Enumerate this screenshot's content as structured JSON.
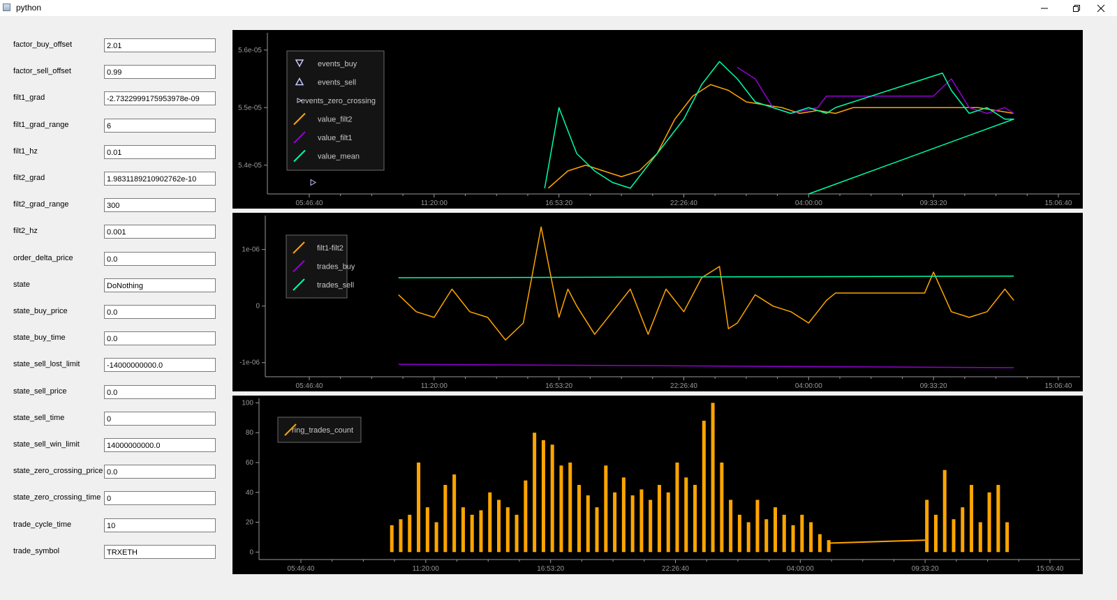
{
  "window": {
    "title": "python"
  },
  "params": [
    {
      "name": "factor_buy_offset",
      "value": "2.01"
    },
    {
      "name": "factor_sell_offset",
      "value": "0.99"
    },
    {
      "name": "filt1_grad",
      "value": "-2.7322999175953978e-09"
    },
    {
      "name": "filt1_grad_range",
      "value": "6"
    },
    {
      "name": "filt1_hz",
      "value": "0.01"
    },
    {
      "name": "filt2_grad",
      "value": "1.9831189210902762e-10"
    },
    {
      "name": "filt2_grad_range",
      "value": "300"
    },
    {
      "name": "filt2_hz",
      "value": "0.001"
    },
    {
      "name": "order_delta_price",
      "value": "0.0"
    },
    {
      "name": "state",
      "value": "DoNothing"
    },
    {
      "name": "state_buy_price",
      "value": "0.0"
    },
    {
      "name": "state_buy_time",
      "value": "0.0"
    },
    {
      "name": "state_sell_lost_limit",
      "value": "-14000000000.0"
    },
    {
      "name": "state_sell_price",
      "value": "0.0"
    },
    {
      "name": "state_sell_time",
      "value": "0"
    },
    {
      "name": "state_sell_win_limit",
      "value": "14000000000.0"
    },
    {
      "name": "state_zero_crossing_price",
      "value": "0.0"
    },
    {
      "name": "state_zero_crossing_time",
      "value": "0"
    },
    {
      "name": "trade_cycle_time",
      "value": "10"
    },
    {
      "name": "trade_symbol",
      "value": "TRXETH"
    }
  ],
  "colors": {
    "orange": "#ffa500",
    "purple": "#9400d3",
    "green": "#00ffaa",
    "lavender": "#c8c8ff",
    "axis": "#9a9a9a"
  },
  "chart_data": [
    {
      "type": "line",
      "x_ticks": [
        "05:46:40",
        "11:20:00",
        "16:53:20",
        "22:26:40",
        "04:00:00",
        "09:33:20",
        "15:06:40"
      ],
      "y_ticks": [
        "5.4e-05",
        "5.5e-05",
        "5.6e-05"
      ],
      "ylim": [
        5.35e-05,
        5.63e-05
      ],
      "legend": [
        "events_buy",
        "events_sell",
        "events_zero_crossing",
        "value_filt2",
        "value_filt1",
        "value_mean"
      ],
      "series": [
        {
          "name": "value_filt2",
          "color": "orange",
          "x": [
            13.4,
            14.5,
            15.5,
            16.5,
            17.5,
            18.5,
            19.5,
            20.5,
            21.5,
            22.5,
            23.5,
            24.5,
            25.5,
            26.5,
            27.5,
            28.5,
            29.5,
            30.5,
            31.5,
            32.5,
            33.5,
            34.5,
            35.5,
            36.5,
            37.5,
            38.5,
            39.5
          ],
          "y": [
            5.36e-05,
            5.39e-05,
            5.4e-05,
            5.39e-05,
            5.38e-05,
            5.39e-05,
            5.42e-05,
            5.48e-05,
            5.52e-05,
            5.54e-05,
            5.53e-05,
            5.51e-05,
            5.505e-05,
            5.5e-05,
            5.49e-05,
            5.495e-05,
            5.49e-05,
            5.5e-05,
            5.5e-05,
            5.5e-05,
            5.5e-05,
            5.5e-05,
            5.5e-05,
            5.5e-05,
            5.5e-05,
            5.495e-05,
            5.49e-05
          ]
        },
        {
          "name": "value_filt1",
          "color": "purple",
          "x": [
            24.0,
            25.0,
            26.0,
            27.0,
            28.5,
            29.0,
            30.0,
            31.0,
            32.0,
            33.0,
            34.0,
            35.0,
            36.0,
            37.0,
            38.0,
            39.0,
            39.5
          ],
          "y": [
            5.57e-05,
            5.55e-05,
            5.5e-05,
            5.49e-05,
            5.5e-05,
            5.52e-05,
            5.52e-05,
            5.52e-05,
            5.52e-05,
            5.52e-05,
            5.52e-05,
            5.52e-05,
            5.55e-05,
            5.5e-05,
            5.49e-05,
            5.5e-05,
            5.49e-05
          ]
        },
        {
          "name": "value_mean",
          "color": "green",
          "x": [
            13.2,
            14.0,
            15.0,
            16.0,
            17.0,
            18.0,
            19.0,
            20.0,
            21.0,
            22.0,
            23.0,
            24.0,
            25.0,
            26.0,
            27.0,
            28.0,
            29.0,
            29.5,
            35.5,
            36.0,
            37.0,
            38.0,
            39.0,
            39.5,
            28.0,
            39.5
          ],
          "y": [
            5.36e-05,
            5.5e-05,
            5.42e-05,
            5.39e-05,
            5.37e-05,
            5.36e-05,
            5.4e-05,
            5.44e-05,
            5.48e-05,
            5.54e-05,
            5.58e-05,
            5.55e-05,
            5.51e-05,
            5.5e-05,
            5.49e-05,
            5.5e-05,
            5.49e-05,
            5.5e-05,
            5.56e-05,
            5.53e-05,
            5.49e-05,
            5.5e-05,
            5.48e-05,
            5.48e-05,
            5.35e-05,
            5.48e-05
          ]
        }
      ],
      "events_zero_crossing": [
        [
          0.2,
          5.37e-05
        ]
      ]
    },
    {
      "type": "line",
      "x_ticks": [
        "05:46:40",
        "11:20:00",
        "16:53:20",
        "22:26:40",
        "04:00:00",
        "09:33:20",
        "15:06:40"
      ],
      "y_ticks": [
        "1e-06",
        "0",
        "-1e-06"
      ],
      "ylim": [
        -1.25e-06,
        1.6e-06
      ],
      "legend": [
        "filt1-filt2",
        "trades_buy",
        "trades_sell"
      ],
      "series": [
        {
          "name": "filt1-filt2",
          "color": "orange",
          "x": [
            5.0,
            6.0,
            7.0,
            8.0,
            9.0,
            10.0,
            11.0,
            12.0,
            13.0,
            14.0,
            14.5,
            15.0,
            16.0,
            17.0,
            18.0,
            19.0,
            20.0,
            21.0,
            22.0,
            23.0,
            23.5,
            24.0,
            25.0,
            26.0,
            27.0,
            28.0,
            29.0,
            29.5,
            34.5,
            35.0,
            36.0,
            37.0,
            38.0,
            39.0,
            39.5
          ],
          "y": [
            2e-07,
            -1e-07,
            -2e-07,
            3e-07,
            -1e-07,
            -2e-07,
            -6e-07,
            -3e-07,
            1.4e-06,
            -2e-07,
            3e-07,
            0,
            -5e-07,
            -1e-07,
            3e-07,
            -5e-07,
            3e-07,
            -1e-07,
            5e-07,
            7e-07,
            -4e-07,
            -3e-07,
            2e-07,
            0,
            -1e-07,
            -3e-07,
            1e-07,
            2.3e-07,
            2.3e-07,
            6e-07,
            -1e-07,
            -2e-07,
            -1e-07,
            3e-07,
            1e-07
          ]
        },
        {
          "name": "trades_buy",
          "color": "purple",
          "x": [
            5.0,
            39.5
          ],
          "y": [
            -1.03e-06,
            -1.09e-06
          ]
        },
        {
          "name": "trades_sell",
          "color": "green",
          "x": [
            5.0,
            39.5
          ],
          "y": [
            5e-07,
            5.3e-07
          ]
        }
      ]
    },
    {
      "type": "bar",
      "x_ticks": [
        "05:46:40",
        "11:20:00",
        "16:53:20",
        "22:26:40",
        "04:00:00",
        "09:33:20",
        "15:06:40"
      ],
      "y_ticks": [
        "0",
        "20",
        "40",
        "60",
        "80",
        "100"
      ],
      "ylim": [
        -5,
        103
      ],
      "legend": [
        "ring_trades_count"
      ],
      "series": [
        {
          "name": "ring_trades_count",
          "color": "orange",
          "x": [
            5.0,
            5.5,
            6.0,
            6.5,
            7.0,
            7.5,
            8.0,
            8.5,
            9.0,
            9.5,
            10.0,
            10.5,
            11.0,
            11.5,
            12.0,
            12.5,
            13.0,
            13.5,
            14.0,
            14.5,
            15.0,
            15.5,
            16.0,
            16.5,
            17.0,
            17.5,
            18.0,
            18.5,
            19.0,
            19.5,
            20.0,
            20.5,
            21.0,
            21.5,
            22.0,
            22.5,
            23.0,
            23.5,
            24.0,
            24.5,
            25.0,
            25.5,
            26.0,
            26.5,
            27.0,
            27.5,
            28.0,
            28.5,
            29.0,
            29.5,
            35.0,
            35.5,
            36.0,
            36.5,
            37.0,
            37.5,
            38.0,
            38.5,
            39.0,
            39.5
          ],
          "y": [
            18,
            22,
            25,
            60,
            30,
            20,
            45,
            52,
            30,
            25,
            28,
            40,
            35,
            30,
            25,
            48,
            80,
            75,
            72,
            58,
            60,
            45,
            38,
            30,
            58,
            40,
            50,
            38,
            42,
            35,
            45,
            40,
            60,
            50,
            45,
            88,
            100,
            60,
            35,
            25,
            20,
            35,
            22,
            30,
            25,
            18,
            25,
            20,
            12,
            8,
            35,
            25,
            55,
            22,
            30,
            45,
            20,
            40,
            45,
            20
          ]
        }
      ]
    }
  ]
}
